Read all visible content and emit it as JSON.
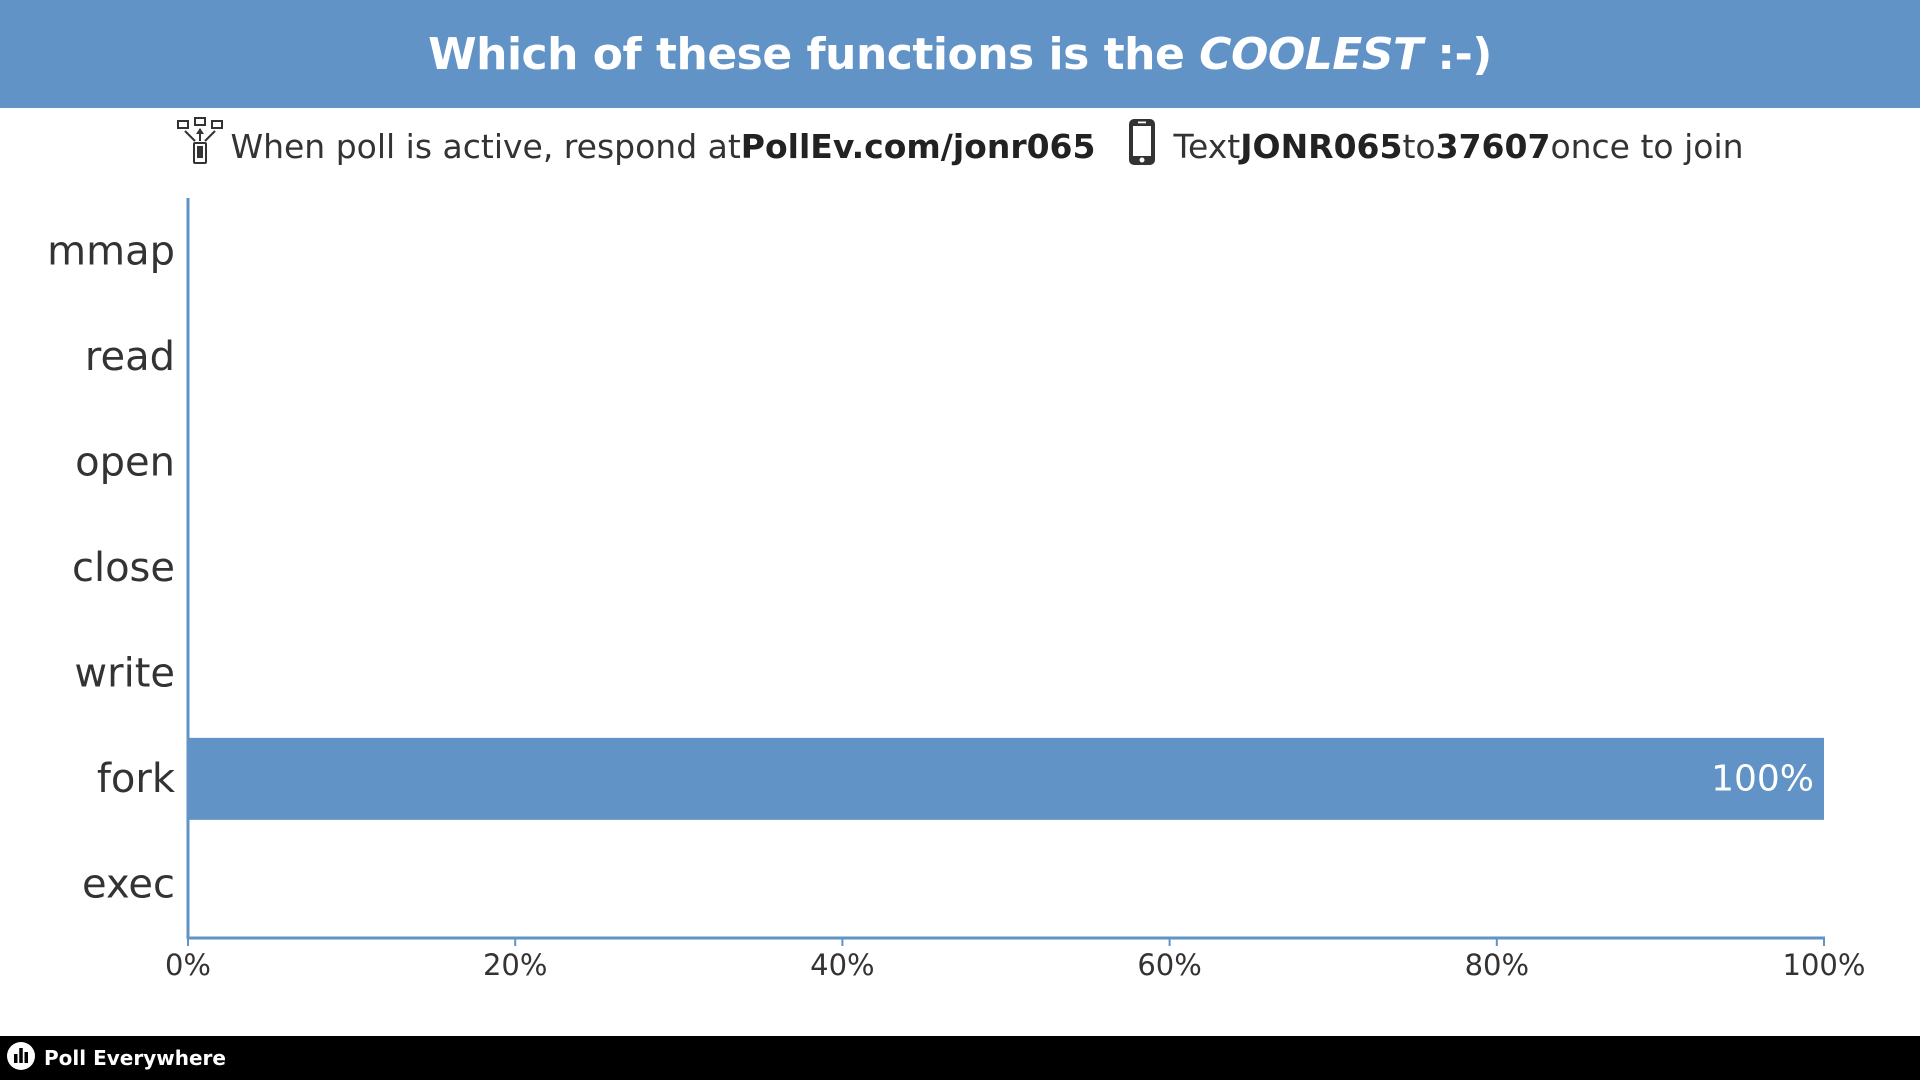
{
  "header": {
    "title_prefix": "Which of these functions is the ",
    "title_emphasis": "COOLEST",
    "title_suffix": " :-)"
  },
  "instructions": {
    "web_prefix": "When poll is active, respond at ",
    "web_url": "PollEv.com/jonr065",
    "text_prefix": "Text ",
    "text_code": "JONR065",
    "text_mid": " to ",
    "text_number": "37607",
    "text_suffix": " once to join",
    "web_icon": "web-response-icon",
    "text_icon": "phone-icon"
  },
  "chart_data": {
    "type": "bar",
    "orientation": "horizontal",
    "categories": [
      "mmap",
      "read",
      "open",
      "close",
      "write",
      "fork",
      "exec"
    ],
    "values": [
      0,
      0,
      0,
      0,
      0,
      100,
      0
    ],
    "value_labels": [
      "",
      "",
      "",
      "",
      "",
      "100%",
      ""
    ],
    "xlim": [
      0,
      100
    ],
    "x_ticks": [
      "0%",
      "20%",
      "40%",
      "60%",
      "80%",
      "100%"
    ],
    "grid": false,
    "bar_color": "#6193c6",
    "axis_color": "#6193c6"
  },
  "footer": {
    "brand": "Poll Everywhere",
    "brand_icon": "poll-everywhere-logo-icon"
  }
}
